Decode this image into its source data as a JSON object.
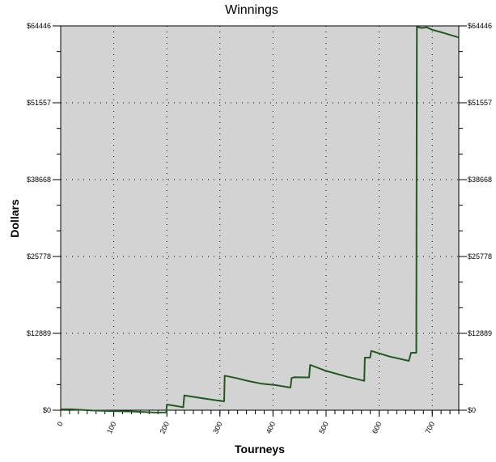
{
  "chart_data": {
    "type": "line",
    "title": "Winnings",
    "xlabel": "Tourneys",
    "ylabel": "Dollars",
    "xlim": [
      0,
      750
    ],
    "ylim": [
      0,
      64446
    ],
    "x_ticks": [
      0,
      100,
      200,
      300,
      400,
      500,
      600,
      700
    ],
    "y_ticks": [
      0,
      12889,
      25778,
      38668,
      51557,
      64446
    ],
    "y_tick_labels": [
      "$0",
      "$12889",
      "$25778",
      "$38668",
      "$51557",
      "$64446"
    ],
    "grid": true,
    "colors": {
      "line": "#1d5c1d",
      "plot_bg": "#d3d3d3"
    },
    "series": [
      {
        "x": [
          0,
          20,
          60,
          100,
          140,
          180,
          199,
          200,
          215,
          231,
          233,
          260,
          290,
          308,
          309,
          330,
          354,
          379,
          405,
          433,
          435,
          440,
          468,
          470,
          500,
          540,
          572,
          573,
          583,
          585,
          620,
          656,
          660,
          670,
          671,
          680,
          690,
          700,
          720,
          750
        ],
        "y": [
          150,
          150,
          -50,
          -150,
          -250,
          -400,
          -350,
          950,
          750,
          500,
          2480,
          2100,
          1700,
          1490,
          5800,
          5400,
          4880,
          4430,
          4200,
          3800,
          5400,
          5520,
          5500,
          7600,
          6600,
          5600,
          4930,
          8820,
          8820,
          9950,
          9000,
          8280,
          9630,
          9630,
          64300,
          64100,
          64200,
          63800,
          63300,
          62500
        ]
      }
    ]
  }
}
